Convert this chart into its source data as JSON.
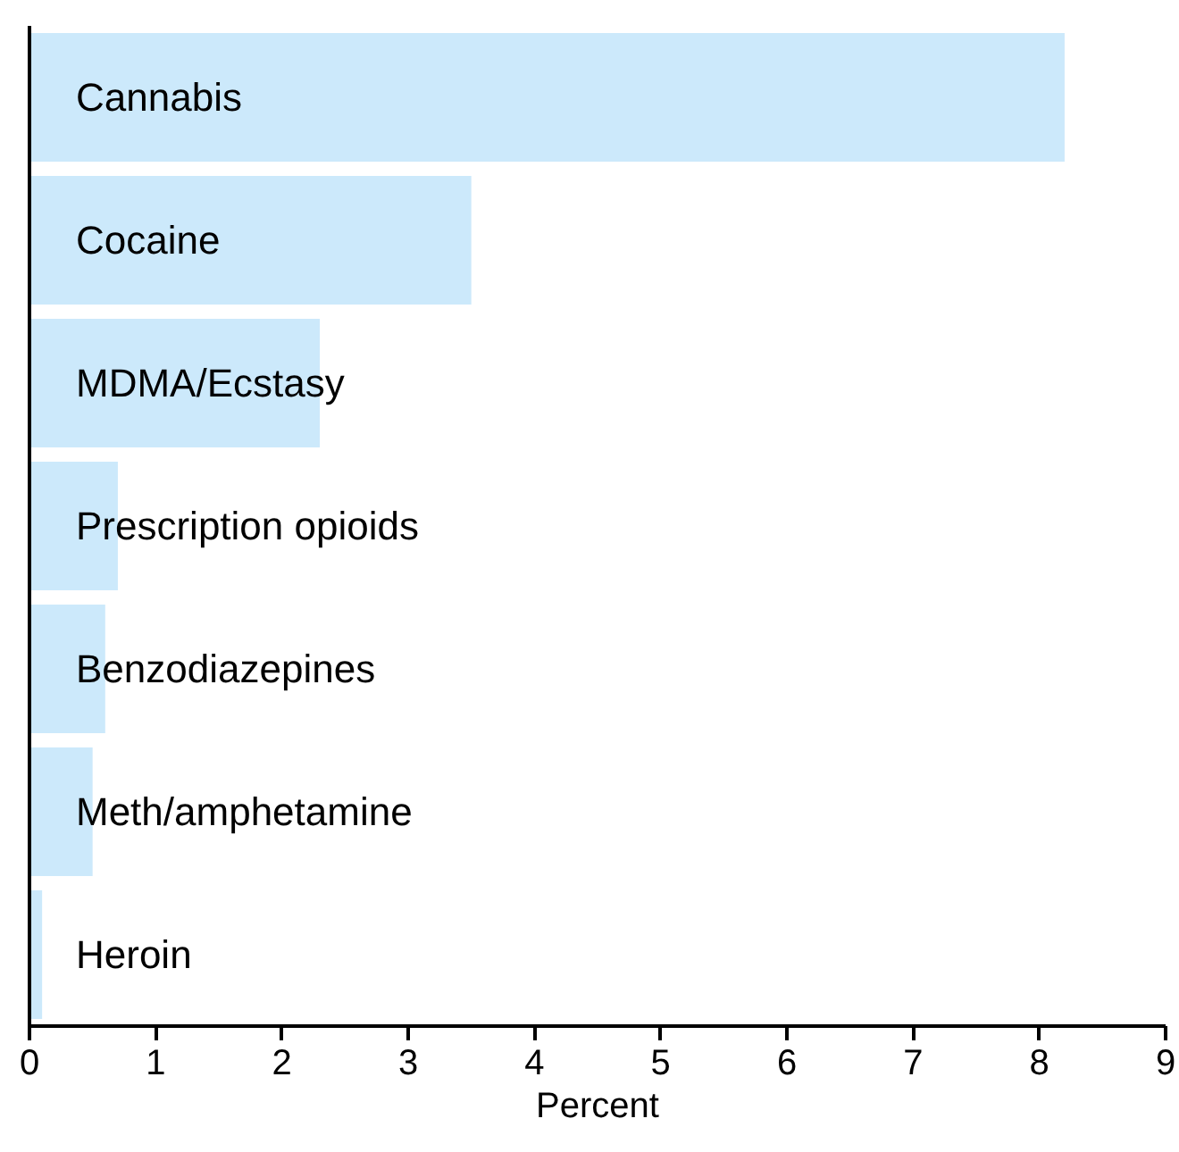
{
  "chart_data": {
    "type": "bar",
    "orientation": "horizontal",
    "xlabel": "Percent",
    "categories": [
      "Cannabis",
      "Cocaine",
      "MDMA/Ecstasy",
      "Prescription opioids",
      "Benzodiazepines",
      "Meth/amphetamine",
      "Heroin"
    ],
    "values": [
      8.2,
      3.5,
      2.3,
      0.7,
      0.6,
      0.5,
      0.1
    ],
    "color": "#cce9fb",
    "xlim": [
      0,
      9
    ],
    "xticks": [
      0,
      1,
      2,
      3,
      4,
      5,
      6,
      7,
      8,
      9
    ],
    "grid": false
  }
}
